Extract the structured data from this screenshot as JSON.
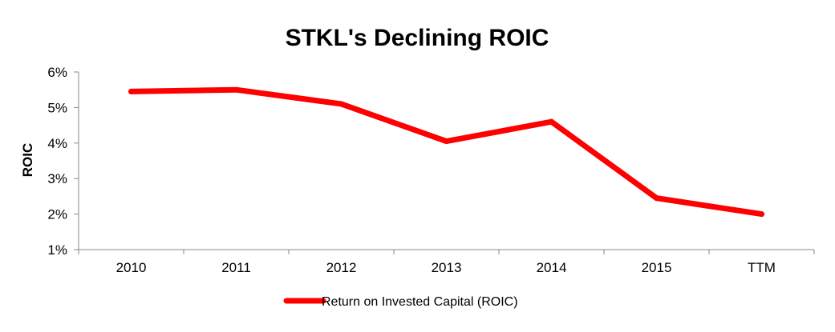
{
  "chart_data": {
    "type": "line",
    "title": "STKL's Declining ROIC",
    "xlabel": "",
    "ylabel": "ROIC",
    "categories": [
      "2010",
      "2011",
      "2012",
      "2013",
      "2014",
      "2015",
      "TTM"
    ],
    "series": [
      {
        "name": "Return on Invested Capital (ROIC)",
        "values": [
          5.45,
          5.5,
          5.1,
          4.05,
          4.6,
          2.45,
          2.0
        ],
        "color": "#ff0000"
      }
    ],
    "ylim": [
      1,
      6
    ],
    "yticks": [
      1,
      2,
      3,
      4,
      5,
      6
    ],
    "ytick_labels": [
      "1%",
      "2%",
      "3%",
      "4%",
      "5%",
      "6%"
    ],
    "grid": false,
    "legend_position": "bottom"
  }
}
